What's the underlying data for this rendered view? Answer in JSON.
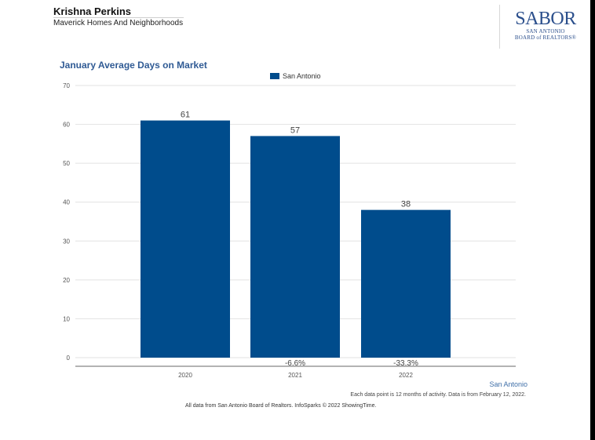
{
  "header": {
    "agent_name": "Krishna Perkins",
    "company": "Maverick Homes And Neighborhoods",
    "logo": {
      "main": "SABOR",
      "line1": "SAN ANTONIO",
      "line2": "BOARD of REALTORS®"
    }
  },
  "footer": {
    "region": "San Antonio",
    "note": "Each data point is 12 months of activity. Data is from February 12, 2022.",
    "source": "All data from San Antonio Board of Realtors. InfoSparks © 2022 ShowingTime."
  },
  "colors": {
    "bar": "#004c8c",
    "title": "#2f5a94"
  },
  "chart_data": {
    "type": "bar",
    "title": "January Average Days on Market",
    "categories": [
      "2020",
      "2021",
      "2022"
    ],
    "series": [
      {
        "name": "San Antonio",
        "values": [
          61,
          57,
          38
        ]
      }
    ],
    "changes": [
      "",
      "-6.6%",
      "-33.3%"
    ],
    "yticks": [
      0,
      10,
      20,
      30,
      40,
      50,
      60,
      70
    ],
    "ylim": [
      0,
      70
    ],
    "xlabel": "",
    "ylabel": "",
    "legend": "top-center",
    "grid": true
  }
}
